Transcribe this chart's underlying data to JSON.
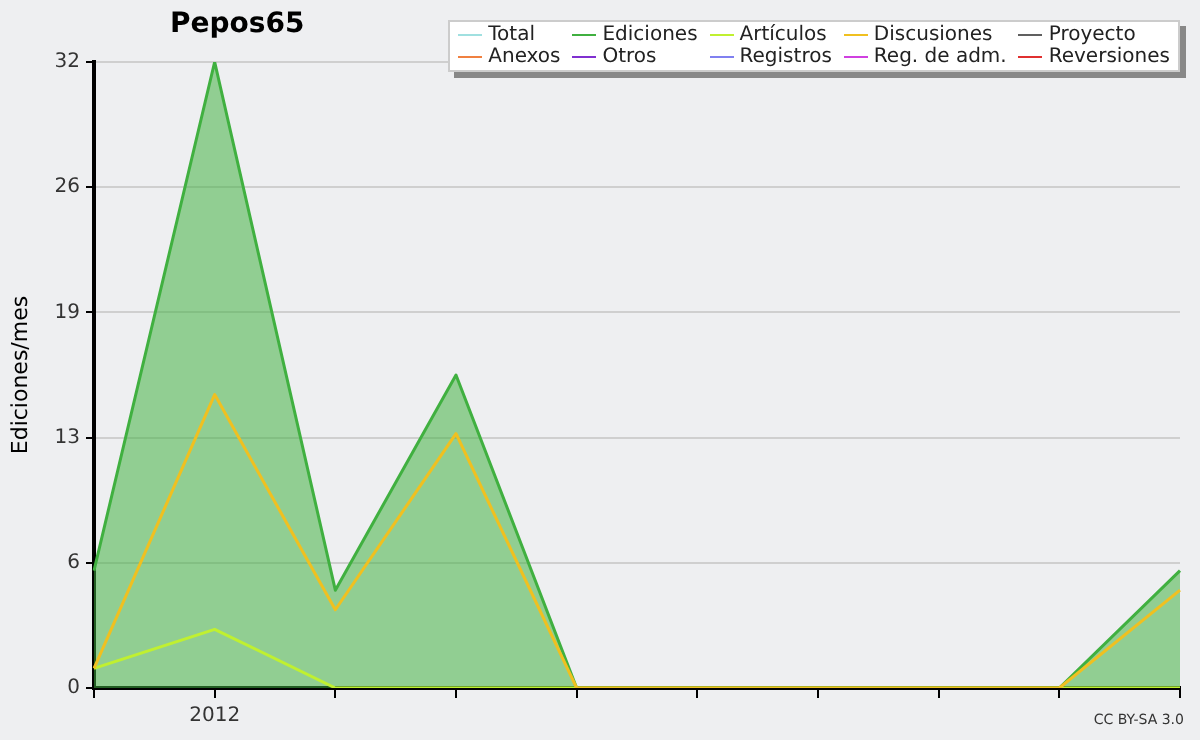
{
  "chart_data": {
    "type": "line",
    "title": "Pepos65",
    "ylabel": "Ediciones/mes",
    "categories": [
      null,
      "2012",
      null,
      null,
      null,
      null,
      null,
      null,
      null,
      null
    ],
    "ylim": [
      0,
      32
    ],
    "yticks": [
      0,
      {
        "value": 6.4,
        "label": "6"
      },
      {
        "value": 12.8,
        "label": "13"
      },
      {
        "value": 19.2,
        "label": "19"
      },
      {
        "value": 25.6,
        "label": "26"
      },
      32
    ],
    "grid": "y",
    "legend": "top right",
    "marker": "none",
    "annotations": [
      "CC BY-SA 3.0"
    ],
    "series": [
      {
        "name": "Total",
        "color": "#a0e0e0",
        "values": [
          null,
          null,
          null,
          null,
          null,
          null,
          null,
          null,
          null,
          null
        ]
      },
      {
        "name": "Ediciones",
        "color": "#40b040",
        "type": "area",
        "values": [
          6,
          32,
          5,
          16,
          0,
          0,
          0,
          0,
          0,
          6
        ]
      },
      {
        "name": "Artículos",
        "color": "#c0f030",
        "values": [
          1,
          3,
          0,
          0,
          0,
          0,
          0,
          0,
          0,
          0
        ]
      },
      {
        "name": "Discusiones",
        "color": "#f0c020",
        "values": [
          1,
          15,
          4,
          13,
          0,
          0,
          0,
          0,
          0,
          5
        ]
      },
      {
        "name": "Proyecto",
        "color": "#606060",
        "values": [
          null,
          null,
          null,
          null,
          null,
          null,
          null,
          null,
          null,
          null
        ]
      },
      {
        "name": "Anexos",
        "color": "#f08040",
        "values": [
          null,
          null,
          null,
          null,
          null,
          null,
          null,
          null,
          null,
          null
        ]
      },
      {
        "name": "Otros",
        "color": "#8030d0",
        "values": [
          null,
          null,
          null,
          null,
          null,
          null,
          null,
          null,
          null,
          null
        ]
      },
      {
        "name": "Registros",
        "color": "#8080f0",
        "values": [
          null,
          null,
          null,
          null,
          null,
          null,
          null,
          null,
          null,
          null
        ]
      },
      {
        "name": "Reg. de adm.",
        "color": "#d040e0",
        "values": [
          null,
          null,
          null,
          null,
          null,
          null,
          null,
          null,
          null,
          null
        ]
      },
      {
        "name": "Reversiones",
        "color": "#e03030",
        "values": [
          null,
          null,
          null,
          null,
          null,
          null,
          null,
          null,
          null,
          null
        ]
      }
    ]
  }
}
